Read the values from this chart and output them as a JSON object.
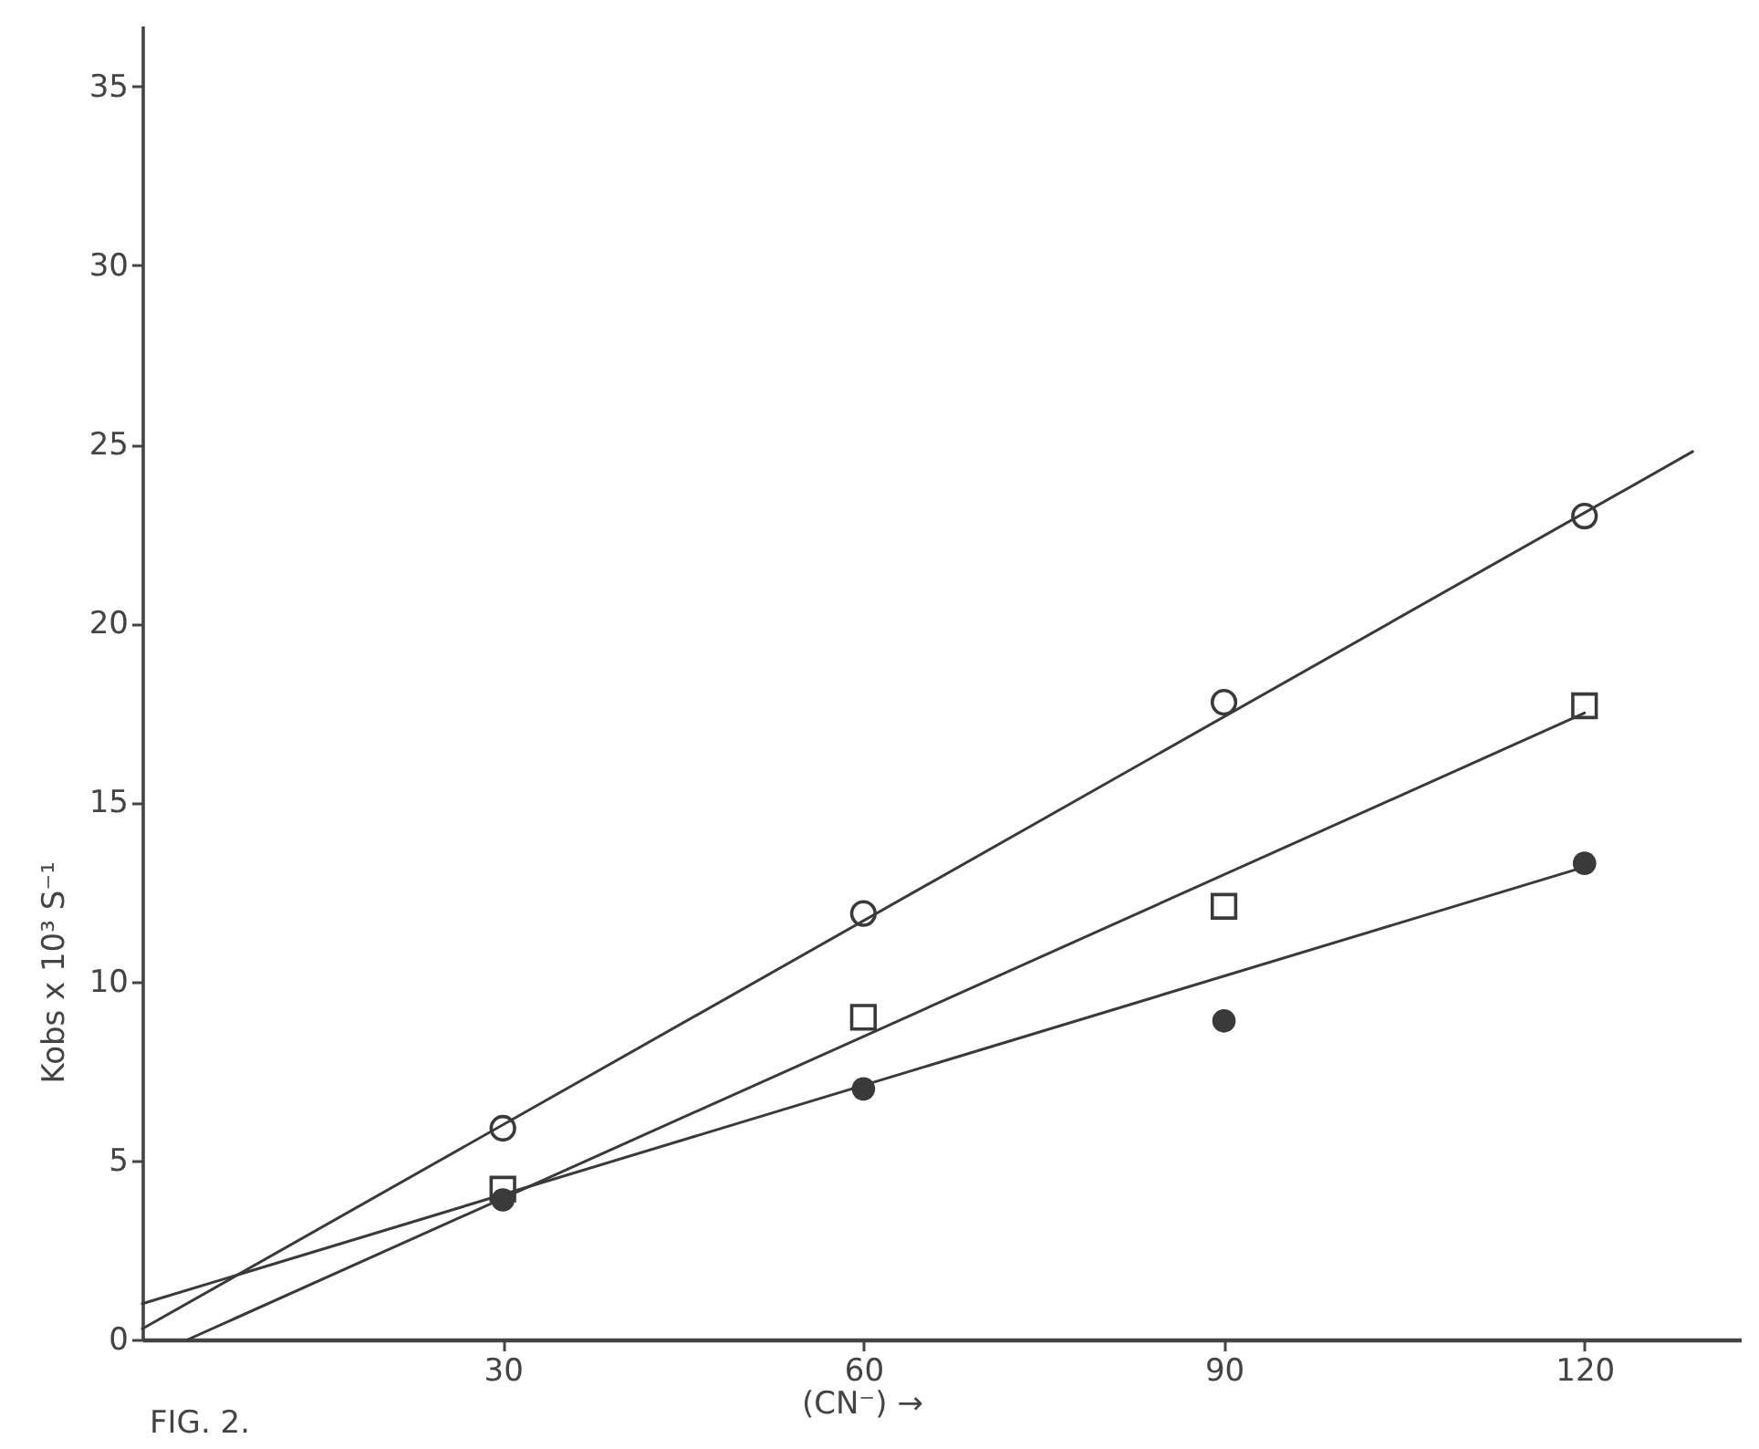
{
  "chart_data": {
    "type": "scatter",
    "xlabel": "(CN⁻) →",
    "ylabel": "Kobs x 10³ S⁻¹",
    "annotations": [
      "FIG. 2."
    ],
    "xlim": [
      0,
      133
    ],
    "ylim": [
      0,
      36.7
    ],
    "xticks": [
      30,
      60,
      90,
      120
    ],
    "yticks": [
      0,
      5,
      10,
      15,
      20,
      25,
      30,
      35
    ],
    "grid": false,
    "series": [
      {
        "marker": "circle",
        "color": "#3a3a3a",
        "x": [
          30,
          60,
          90,
          120
        ],
        "values": [
          5.9,
          11.9,
          17.8,
          23.0
        ]
      },
      {
        "marker": "square",
        "color": "#3a3a3a",
        "x": [
          30,
          60,
          90,
          120
        ],
        "values": [
          4.2,
          9.0,
          12.1,
          17.7
        ]
      },
      {
        "marker": "circle",
        "color": "#3a3a3a",
        "x": [
          30,
          60,
          90,
          120
        ],
        "values": [
          3.9,
          7.0,
          8.9,
          13.3
        ]
      },
      {
        "type": "line",
        "color": "#3a3a3a",
        "x": [
          0,
          129
        ],
        "values": [
          0.3,
          24.8
        ]
      },
      {
        "type": "line",
        "color": "#3a3a3a",
        "x": [
          3.8,
          120
        ],
        "values": [
          0,
          17.5
        ]
      },
      {
        "type": "line",
        "color": "#3a3a3a",
        "x": [
          0,
          120
        ],
        "values": [
          1.0,
          13.2
        ]
      }
    ]
  }
}
